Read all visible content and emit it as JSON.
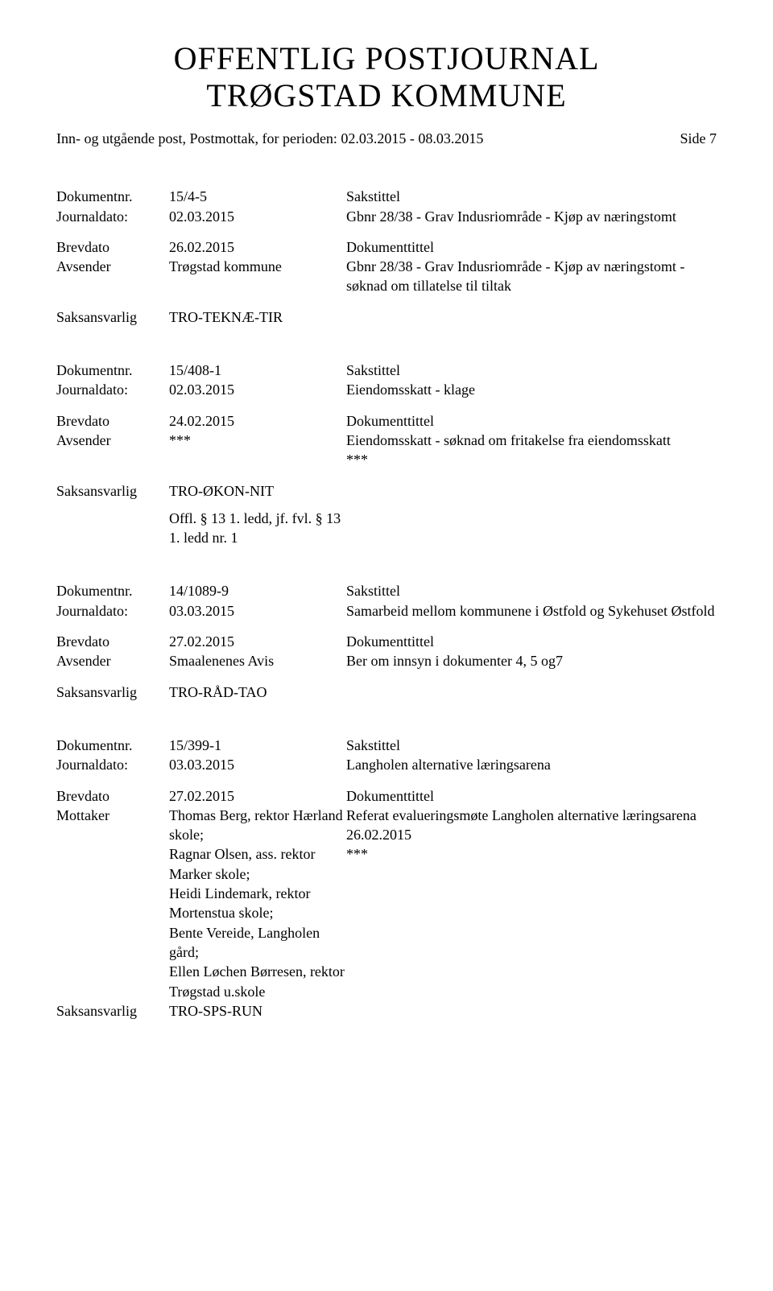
{
  "header": {
    "title_line1": "OFFENTLIG POSTJOURNAL",
    "title_line2": "TRØGSTAD KOMMUNE",
    "subtitle": "Inn- og utgående post, Postmottak, for perioden: 02.03.2015 - 08.03.2015",
    "page_label": "Side 7"
  },
  "labels": {
    "dokumentnr": "Dokumentnr.",
    "journaldato": "Journaldato:",
    "brevdato": "Brevdato",
    "avsender": "Avsender",
    "mottaker": "Mottaker",
    "saksansvarlig": "Saksansvarlig",
    "sakstittel": "Sakstittel",
    "dokumenttittel": "Dokumenttittel"
  },
  "entries": [
    {
      "dokumentnr": "15/4-5",
      "journaldato": "02.03.2015",
      "sakstittel": "Gbnr 28/38 - Grav Indusriområde - Kjøp av næringstomt",
      "brevdato": "26.02.2015",
      "party_label": "Avsender",
      "party": "Trøgstad kommune",
      "dokumenttittel": "Gbnr 28/38 - Grav Indusriområde - Kjøp av næringstomt - søknad om tillatelse til tiltak",
      "saksansvarlig": "TRO-TEKNÆ-TIR",
      "offl": null
    },
    {
      "dokumentnr": "15/408-1",
      "journaldato": "02.03.2015",
      "sakstittel": "Eiendomsskatt - klage",
      "brevdato": "24.02.2015",
      "party_label": "Avsender",
      "party": "***",
      "dokumenttittel": "Eiendomsskatt - søknad om fritakelse fra eiendomsskatt\n***",
      "saksansvarlig": "TRO-ØKON-NIT",
      "offl": "Offl. § 13 1. ledd, jf. fvl. § 13 1. ledd nr. 1"
    },
    {
      "dokumentnr": "14/1089-9",
      "journaldato": "03.03.2015",
      "sakstittel": "Samarbeid mellom kommunene i Østfold og Sykehuset Østfold",
      "brevdato": "27.02.2015",
      "party_label": "Avsender",
      "party": "Smaalenenes Avis",
      "dokumenttittel": "Ber om innsyn i dokumenter 4, 5 og7",
      "saksansvarlig": "TRO-RÅD-TAO",
      "offl": null
    },
    {
      "dokumentnr": "15/399-1",
      "journaldato": "03.03.2015",
      "sakstittel": "Langholen alternative læringsarena",
      "brevdato": "27.02.2015",
      "party_label": "Mottaker",
      "party": "Thomas Berg, rektor Hærland skole;\nRagnar Olsen, ass. rektor Marker skole;\nHeidi Lindemark, rektor Mortenstua skole;\nBente Vereide, Langholen gård;\nEllen Løchen Børresen, rektor Trøgstad u.skole",
      "dokumenttittel": "Referat evalueringsmøte Langholen alternative læringsarena 26.02.2015\n***",
      "saksansvarlig": "TRO-SPS-RUN",
      "offl": null,
      "saksansvarlig_inline": true
    }
  ]
}
